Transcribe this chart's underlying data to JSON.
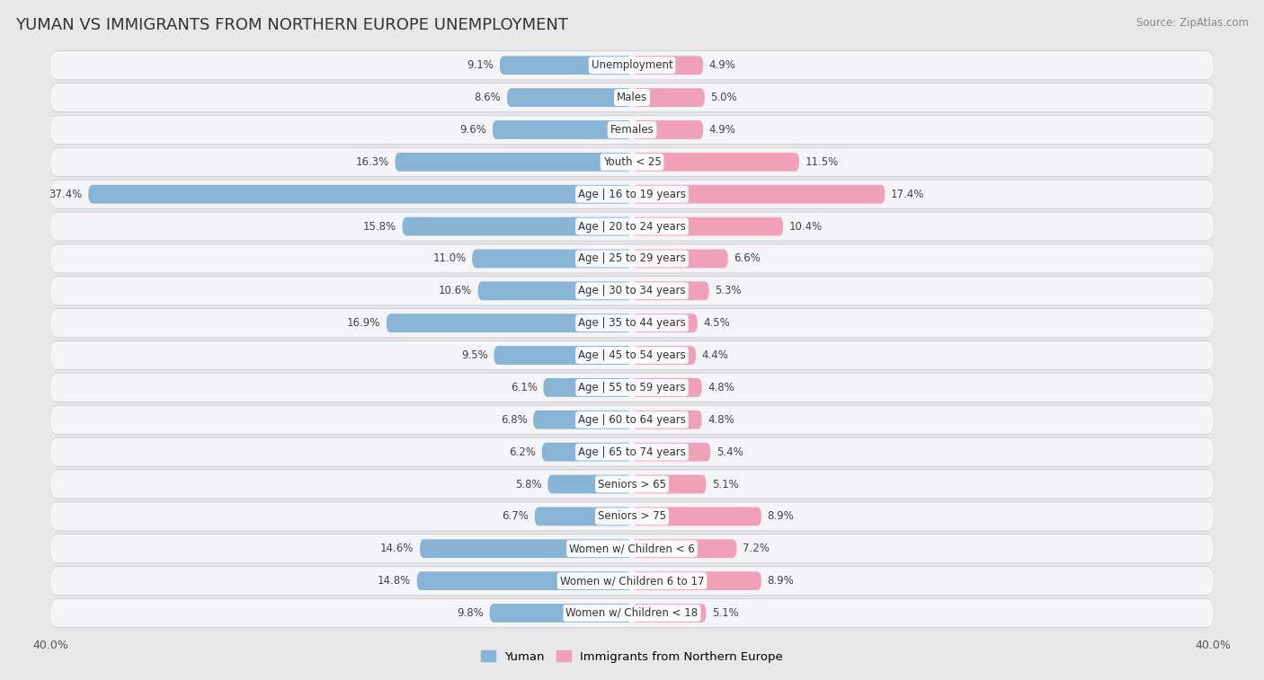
{
  "title": "YUMAN VS IMMIGRANTS FROM NORTHERN EUROPE UNEMPLOYMENT",
  "source": "Source: ZipAtlas.com",
  "categories": [
    "Unemployment",
    "Males",
    "Females",
    "Youth < 25",
    "Age | 16 to 19 years",
    "Age | 20 to 24 years",
    "Age | 25 to 29 years",
    "Age | 30 to 34 years",
    "Age | 35 to 44 years",
    "Age | 45 to 54 years",
    "Age | 55 to 59 years",
    "Age | 60 to 64 years",
    "Age | 65 to 74 years",
    "Seniors > 65",
    "Seniors > 75",
    "Women w/ Children < 6",
    "Women w/ Children 6 to 17",
    "Women w/ Children < 18"
  ],
  "yuman_values": [
    9.1,
    8.6,
    9.6,
    16.3,
    37.4,
    15.8,
    11.0,
    10.6,
    16.9,
    9.5,
    6.1,
    6.8,
    6.2,
    5.8,
    6.7,
    14.6,
    14.8,
    9.8
  ],
  "immigrant_values": [
    4.9,
    5.0,
    4.9,
    11.5,
    17.4,
    10.4,
    6.6,
    5.3,
    4.5,
    4.4,
    4.8,
    4.8,
    5.4,
    5.1,
    8.9,
    7.2,
    8.9,
    5.1
  ],
  "yuman_color": "#88b4d5",
  "immigrant_color": "#f0a0b8",
  "xlim": 40.0,
  "background_color": "#e8e8e8",
  "row_color": "#f5f5f8",
  "row_shadow_color": "#d0d0d8",
  "title_fontsize": 13,
  "label_fontsize": 8.5,
  "value_fontsize": 8.5,
  "legend_yuman": "Yuman",
  "legend_immigrant": "Immigrants from Northern Europe"
}
